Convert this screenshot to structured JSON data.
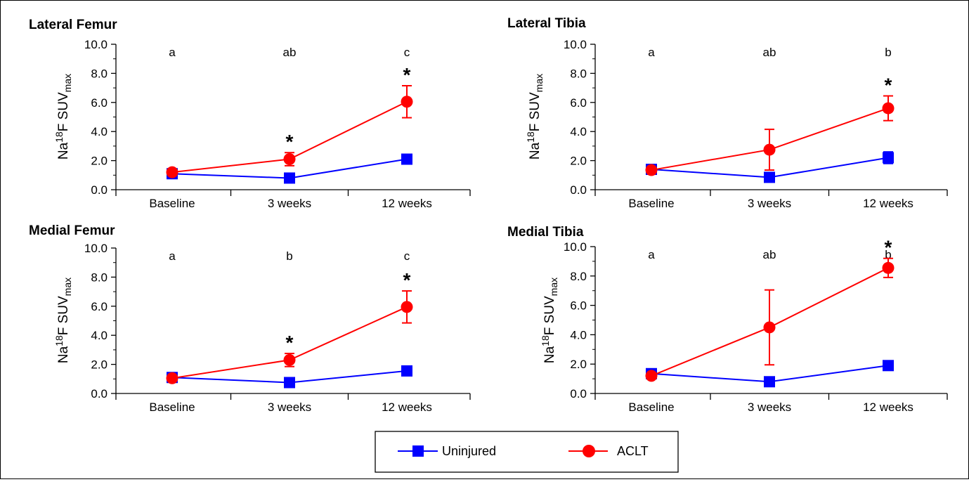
{
  "chart_data": [
    {
      "type": "line",
      "title": "Lateral Femur",
      "ylabel": "Na18F SUVmax",
      "ylabel_parts": {
        "a": "Na",
        "sup": "18",
        "b": "F SUV",
        "sub": "max"
      },
      "categories": [
        "Baseline",
        "3 weeks",
        "12 weeks"
      ],
      "ylim": [
        0,
        10
      ],
      "yticks": [
        "0.0",
        "2.0",
        "4.0",
        "6.0",
        "8.0",
        "10.0"
      ],
      "sig_letters": [
        "a",
        "ab",
        "c"
      ],
      "star_marks": [
        "",
        "*",
        "*"
      ],
      "series": [
        {
          "name": "Uninjured",
          "values": [
            1.1,
            0.8,
            2.1
          ],
          "err": [
            0.1,
            0.1,
            0.15
          ]
        },
        {
          "name": "ACLT",
          "values": [
            1.2,
            2.1,
            6.05
          ],
          "err": [
            0.2,
            0.45,
            1.1
          ]
        }
      ]
    },
    {
      "type": "line",
      "title": "Lateral Tibia",
      "ylabel": "Na18F SUVmax",
      "ylabel_parts": {
        "a": "Na",
        "sup": "18",
        "b": "F SUV",
        "sub": "max"
      },
      "categories": [
        "Baseline",
        "3 weeks",
        "12 weeks"
      ],
      "ylim": [
        0,
        10
      ],
      "yticks": [
        "0.0",
        "2.0",
        "4.0",
        "6.0",
        "8.0",
        "10.0"
      ],
      "sig_letters": [
        "a",
        "ab",
        "b"
      ],
      "star_marks": [
        "",
        "",
        "*"
      ],
      "series": [
        {
          "name": "Uninjured",
          "values": [
            1.4,
            0.85,
            2.2
          ],
          "err": [
            0.1,
            0.1,
            0.4
          ]
        },
        {
          "name": "ACLT",
          "values": [
            1.35,
            2.75,
            5.6
          ],
          "err": [
            0.15,
            1.4,
            0.85
          ]
        }
      ]
    },
    {
      "type": "line",
      "title": "Medial Femur",
      "ylabel": "Na18F SUVmax",
      "ylabel_parts": {
        "a": "Na",
        "sup": "18",
        "b": "F SUV",
        "sub": "max"
      },
      "categories": [
        "Baseline",
        "3 weeks",
        "12 weeks"
      ],
      "ylim": [
        0,
        10
      ],
      "yticks": [
        "0.0",
        "2.0",
        "4.0",
        "6.0",
        "8.0",
        "10.0"
      ],
      "sig_letters": [
        "a",
        "b",
        "c"
      ],
      "star_marks": [
        "",
        "*",
        "*"
      ],
      "series": [
        {
          "name": "Uninjured",
          "values": [
            1.1,
            0.75,
            1.55
          ],
          "err": [
            0.1,
            0.1,
            0.15
          ]
        },
        {
          "name": "ACLT",
          "values": [
            1.05,
            2.3,
            5.95
          ],
          "err": [
            0.15,
            0.45,
            1.1
          ]
        }
      ]
    },
    {
      "type": "line",
      "title": "Medial Tibia",
      "ylabel": "Na18F SUVmax",
      "ylabel_parts": {
        "a": "Na",
        "sup": "18",
        "b": "F SUV",
        "sub": "max"
      },
      "categories": [
        "Baseline",
        "3 weeks",
        "12 weeks"
      ],
      "ylim": [
        0,
        10
      ],
      "yticks": [
        "0.0",
        "2.0",
        "4.0",
        "6.0",
        "8.0",
        "10.0"
      ],
      "sig_letters": [
        "a",
        "ab",
        "b"
      ],
      "star_marks": [
        "",
        "",
        "*"
      ],
      "series": [
        {
          "name": "Uninjured",
          "values": [
            1.35,
            0.8,
            1.9
          ],
          "err": [
            0.1,
            0.1,
            0.15
          ]
        },
        {
          "name": "ACLT",
          "values": [
            1.2,
            4.5,
            8.55
          ],
          "err": [
            0.15,
            2.55,
            0.65
          ]
        }
      ]
    }
  ],
  "legend": {
    "items": [
      {
        "label": "Uninjured",
        "marker": "square",
        "color": "#0000ff"
      },
      {
        "label": "ACLT",
        "marker": "circle",
        "color": "#ff0000"
      }
    ]
  },
  "colors": {
    "uninjured": "#0000ff",
    "aclt": "#ff0000",
    "axis": "#000000"
  }
}
